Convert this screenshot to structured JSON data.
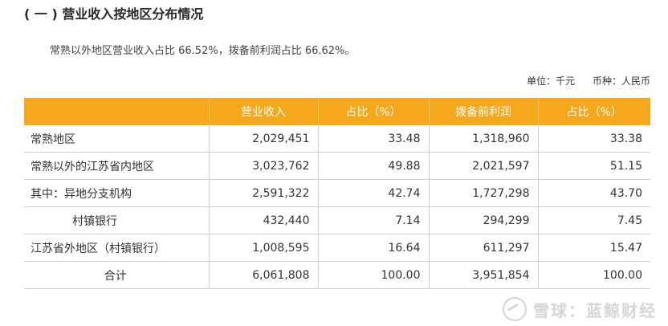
{
  "section_title": "( 一 ) 营业收入按地区分布情况",
  "summary": "常熟以外地区营业收入占比 66.52%，拨备前利润占比 66.62%。",
  "units": {
    "unit": "单位：千元",
    "currency": "币种：人民币"
  },
  "table": {
    "headers": [
      "",
      "营业收入",
      "占比（%）",
      "拨备前利润",
      "占比（%）"
    ],
    "rows": [
      [
        "常熟地区",
        "2,029,451",
        "33.48",
        "1,318,960",
        "33.38"
      ],
      [
        "常熟以外的江苏省内地区",
        "3,023,762",
        "49.88",
        "2,021,597",
        "51.15"
      ],
      [
        "其中：异地分支机构",
        "2,591,322",
        "42.74",
        "1,727,298",
        "43.70"
      ],
      [
        "村镇银行",
        "432,440",
        "7.14",
        "294,299",
        "7.45"
      ],
      [
        "江苏省外地区（村镇银行）",
        "1,008,595",
        "16.64",
        "611,297",
        "15.47"
      ],
      [
        "合计",
        "6,061,808",
        "100.00",
        "3,951,854",
        "100.00"
      ]
    ]
  },
  "watermark": "雪球：蓝鲸财经",
  "colors": {
    "header_bg": "#f5a81c",
    "header_text": "#ffffff"
  }
}
